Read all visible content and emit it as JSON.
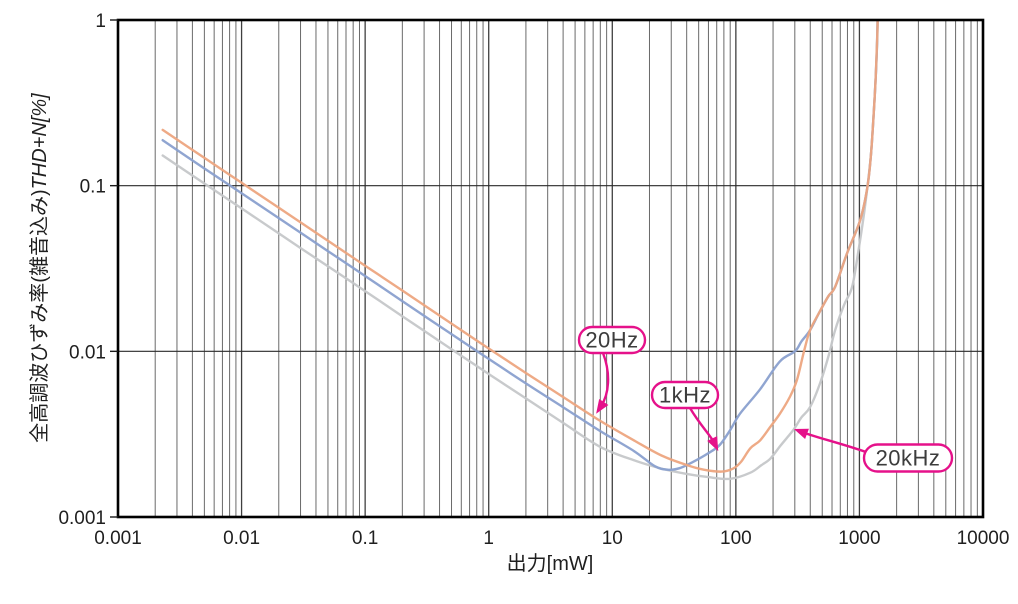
{
  "chart_data": {
    "type": "line",
    "xlabel": "出力[mW]",
    "ylabel_jp": "全高調波ひずみ率(雑音込み)",
    "ylabel_math": "THD+N[%]",
    "xscale": "log",
    "yscale": "log",
    "xlim": [
      0.001,
      10000
    ],
    "ylim": [
      0.001,
      1
    ],
    "x_tick_values": [
      0.001,
      0.01,
      0.1,
      1,
      10,
      100,
      1000,
      10000
    ],
    "x_tick_labels": [
      "0.001",
      "0.01",
      "0.1",
      "1",
      "10",
      "100",
      "1000",
      "10000"
    ],
    "y_tick_values": [
      1,
      0.1,
      0.01,
      0.001
    ],
    "y_tick_labels": [
      "1",
      "0.1",
      "0.01",
      "0.001"
    ],
    "grid": {
      "x_minor_lines": true,
      "y_minor_lines": false,
      "legend": "none"
    },
    "series": [
      {
        "name": "20kHz",
        "color": "#c5c7c9",
        "points": [
          [
            0.0023,
            0.152
          ],
          [
            0.005,
            0.103
          ],
          [
            0.01,
            0.0729
          ],
          [
            0.02,
            0.0515
          ],
          [
            0.05,
            0.0326
          ],
          [
            0.1,
            0.0231
          ],
          [
            0.2,
            0.0163
          ],
          [
            0.5,
            0.0103
          ],
          [
            1,
            0.0073
          ],
          [
            2,
            0.0052
          ],
          [
            4,
            0.0037
          ],
          [
            8,
            0.00265
          ],
          [
            15,
            0.0022
          ],
          [
            25,
            0.00196
          ],
          [
            40,
            0.00182
          ],
          [
            60,
            0.00174
          ],
          [
            90,
            0.0017
          ],
          [
            131,
            0.00185
          ],
          [
            160,
            0.00205
          ],
          [
            190,
            0.00225
          ],
          [
            230,
            0.0027
          ],
          [
            273,
            0.00315
          ],
          [
            300,
            0.00345
          ],
          [
            340,
            0.004
          ],
          [
            398,
            0.0046
          ],
          [
            480,
            0.0064
          ],
          [
            565,
            0.0095
          ],
          [
            635,
            0.0134
          ],
          [
            750,
            0.019
          ],
          [
            873,
            0.0245
          ],
          [
            980,
            0.04
          ],
          [
            1080,
            0.065
          ],
          [
            1160,
            0.098
          ],
          [
            1240,
            0.155
          ],
          [
            1300,
            0.26
          ],
          [
            1355,
            0.45
          ],
          [
            1395,
            0.78
          ],
          [
            1415,
            1.15
          ]
        ]
      },
      {
        "name": "1kHz",
        "color": "#8aa0cf",
        "points": [
          [
            0.0023,
            0.188
          ],
          [
            0.005,
            0.127
          ],
          [
            0.01,
            0.09
          ],
          [
            0.02,
            0.0637
          ],
          [
            0.05,
            0.0403
          ],
          [
            0.1,
            0.0285
          ],
          [
            0.2,
            0.0201
          ],
          [
            0.5,
            0.0127
          ],
          [
            1,
            0.009
          ],
          [
            2,
            0.0064
          ],
          [
            4,
            0.0046
          ],
          [
            8,
            0.0033
          ],
          [
            15,
            0.0025
          ],
          [
            22,
            0.00203
          ],
          [
            28,
            0.00193
          ],
          [
            35,
            0.00197
          ],
          [
            45,
            0.00215
          ],
          [
            60,
            0.00243
          ],
          [
            74,
            0.00272
          ],
          [
            90,
            0.00335
          ],
          [
            108,
            0.0042
          ],
          [
            157,
            0.0059
          ],
          [
            227,
            0.0087
          ],
          [
            301,
            0.01
          ],
          [
            340,
            0.0115
          ],
          [
            398,
            0.0134
          ],
          [
            470,
            0.017
          ],
          [
            560,
            0.0215
          ],
          [
            635,
            0.0245
          ],
          [
            794,
            0.039
          ],
          [
            1014,
            0.062
          ],
          [
            1160,
            0.098
          ],
          [
            1240,
            0.155
          ],
          [
            1300,
            0.26
          ],
          [
            1355,
            0.45
          ],
          [
            1390,
            0.75
          ],
          [
            1405,
            1.15
          ]
        ]
      },
      {
        "name": "20Hz",
        "color": "#eda57f",
        "points": [
          [
            0.0023,
            0.217
          ],
          [
            0.005,
            0.147
          ],
          [
            0.01,
            0.104
          ],
          [
            0.02,
            0.0735
          ],
          [
            0.05,
            0.0465
          ],
          [
            0.1,
            0.0329
          ],
          [
            0.2,
            0.0233
          ],
          [
            0.5,
            0.0147
          ],
          [
            1,
            0.0104
          ],
          [
            2,
            0.0074
          ],
          [
            4,
            0.0053
          ],
          [
            8,
            0.0038
          ],
          [
            15,
            0.0029
          ],
          [
            25,
            0.00235
          ],
          [
            40,
            0.00206
          ],
          [
            55,
            0.00193
          ],
          [
            77,
            0.00188
          ],
          [
            95,
            0.00196
          ],
          [
            110,
            0.00215
          ],
          [
            131,
            0.0026
          ],
          [
            157,
            0.0029
          ],
          [
            190,
            0.0035
          ],
          [
            227,
            0.0042
          ],
          [
            273,
            0.0053
          ],
          [
            312,
            0.0067
          ],
          [
            356,
            0.01
          ],
          [
            398,
            0.0134
          ],
          [
            470,
            0.017
          ],
          [
            560,
            0.0215
          ],
          [
            635,
            0.0245
          ],
          [
            794,
            0.039
          ],
          [
            1014,
            0.062
          ],
          [
            1160,
            0.098
          ],
          [
            1240,
            0.155
          ],
          [
            1300,
            0.26
          ],
          [
            1355,
            0.45
          ],
          [
            1390,
            0.75
          ],
          [
            1410,
            1.15
          ]
        ]
      }
    ],
    "annotations": [
      {
        "label": "20Hz",
        "series": "20Hz",
        "target_mW": 7.4,
        "target_pct": 0.0042
      },
      {
        "label": "1kHz",
        "series": "1kHz",
        "target_mW": 72,
        "target_pct": 0.0025
      },
      {
        "label": "20kHz",
        "series": "20kHz",
        "target_mW": 295,
        "target_pct": 0.0034
      }
    ],
    "annotation_color": "#e5118a",
    "grid_minor_color": "#6a6a6a",
    "grid_major_color": "#3f3f3f",
    "border_color": "#000000"
  }
}
